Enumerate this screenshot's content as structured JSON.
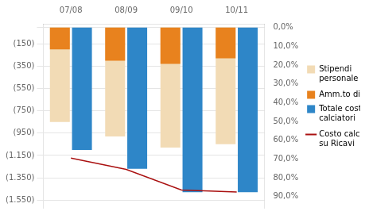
{
  "chart_data": {
    "type": "bar",
    "categories": [
      "07/08",
      "08/09",
      "09/10",
      "10/11"
    ],
    "series": [
      {
        "name": "Stipendi\npersonale",
        "color": "#f2dbb5",
        "values": [
          -850,
          -980,
          -1080,
          -1050
        ]
      },
      {
        "name": "Amm.to diritti",
        "color": "#e8821e",
        "values": [
          -200,
          -300,
          -330,
          -280
        ]
      },
      {
        "name": "Totale costo\ncalciatori",
        "color": "#2e86c8",
        "values": [
          -1100,
          -1270,
          -1480,
          -1480
        ]
      },
      {
        "name": "Costo calciatori\nsu Ricavi",
        "type": "line",
        "axis": "y2",
        "color": "#aa1111",
        "values": [
          0.695,
          0.755,
          0.865,
          0.875
        ]
      }
    ],
    "ylim": [
      -1620,
      30
    ],
    "yticks": [
      {
        "value": 0,
        "label": ""
      },
      {
        "value": -150,
        "label": "(150)"
      },
      {
        "value": -350,
        "label": "(350)"
      },
      {
        "value": -550,
        "label": "(550)"
      },
      {
        "value": -750,
        "label": "(750)"
      },
      {
        "value": -950,
        "label": "(950)"
      },
      {
        "value": -1150,
        "label": "(1.150)"
      },
      {
        "value": -1350,
        "label": "(1.350)"
      },
      {
        "value": -1550,
        "label": "(1.550)"
      }
    ],
    "y2lim": [
      0.96,
      -0.02
    ],
    "y2ticks": [
      {
        "value": 0.0,
        "label": "0,0%"
      },
      {
        "value": 0.1,
        "label": "10,0%"
      },
      {
        "value": 0.2,
        "label": "20,0%"
      },
      {
        "value": 0.3,
        "label": "30,0%"
      },
      {
        "value": 0.4,
        "label": "40,0%"
      },
      {
        "value": 0.5,
        "label": "50,0%"
      },
      {
        "value": 0.6,
        "label": "60,0%"
      },
      {
        "value": 0.7,
        "label": "70,0%"
      },
      {
        "value": 0.8,
        "label": "80,0%"
      },
      {
        "value": 0.9,
        "label": "90,0%"
      }
    ],
    "grid": true,
    "legend": "right"
  }
}
